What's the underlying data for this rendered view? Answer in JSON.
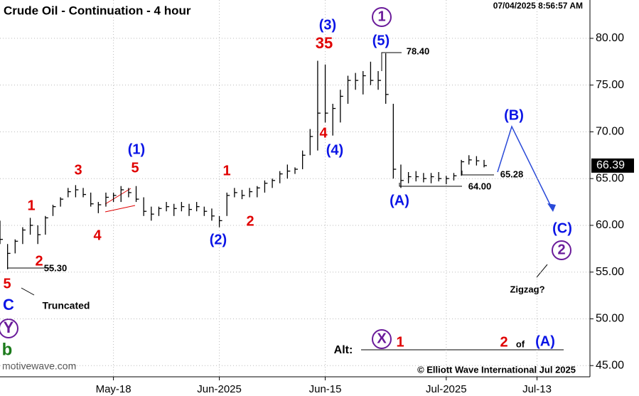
{
  "chart_data": {
    "type": "ohlc",
    "title": "Crude Oil - Continuation - 4 hour",
    "timestamp": "07/04/2025 8:56:57 AM",
    "source": "motivewave.com",
    "copyright": "© Elliott Wave International Jul 2025",
    "color": "#000000",
    "grid": true,
    "x": [
      0,
      1,
      2,
      3,
      4,
      5,
      6,
      7,
      8,
      9,
      10,
      11,
      12,
      13,
      14,
      15,
      16,
      17,
      18,
      19,
      20,
      21,
      22,
      23,
      24,
      25,
      26,
      27,
      28,
      29,
      30,
      31,
      32,
      33,
      34,
      35,
      36,
      37,
      38,
      39,
      40,
      41,
      42,
      43,
      44,
      45,
      46,
      47,
      48,
      49,
      50,
      51,
      52,
      53,
      54,
      55,
      56,
      57,
      58,
      59,
      60,
      61,
      62,
      63,
      64
    ],
    "high": [
      60.5,
      58,
      58.5,
      59.8,
      60.8,
      60,
      61,
      62.2,
      63,
      64,
      64.3,
      64,
      63.5,
      62.5,
      63.5,
      63.5,
      64.2,
      64,
      64.2,
      63,
      62,
      62,
      62.5,
      62.3,
      62.5,
      62.3,
      62.5,
      62,
      61.8,
      61,
      63.5,
      64,
      63.8,
      64,
      64.2,
      64.8,
      65,
      65.8,
      66.5,
      66.2,
      68,
      70.3,
      77.6,
      77.2,
      73,
      74.5,
      76,
      76.3,
      76.5,
      77.5,
      76.5,
      78.4,
      73,
      66.5,
      65.7,
      65.8,
      65.6,
      65.6,
      65.7,
      65.3,
      65.6,
      67,
      67.5,
      67.4,
      67
    ],
    "low": [
      58,
      55.3,
      57,
      58,
      59,
      58,
      59,
      61,
      62,
      63,
      63,
      63,
      62,
      61.3,
      62,
      62.5,
      62.5,
      63,
      62.5,
      61,
      60.5,
      61,
      61.5,
      61,
      61.5,
      61,
      61.5,
      61,
      60.5,
      59.8,
      61,
      63,
      62.8,
      63,
      63,
      63.5,
      64,
      64.5,
      65,
      65.5,
      66,
      67.5,
      68,
      71,
      69.6,
      71,
      73,
      74.5,
      74,
      75,
      74.5,
      73,
      65,
      64,
      64.5,
      64.7,
      64.6,
      64.5,
      64.7,
      64.4,
      64.8,
      65.3,
      66.5,
      66.4,
      66.2
    ],
    "close": [
      58.5,
      57,
      58.3,
      59.5,
      60,
      59,
      60.8,
      62,
      62.8,
      63.6,
      63.8,
      63.3,
      62.3,
      62.2,
      63,
      63.2,
      63.8,
      63.5,
      62.8,
      61.5,
      61.2,
      61.8,
      62,
      61.8,
      62,
      61.7,
      62,
      61.5,
      61,
      60.5,
      63.2,
      63.5,
      63.2,
      63.6,
      64,
      64.5,
      64.8,
      65.5,
      65.8,
      66,
      67.5,
      69.5,
      72,
      72,
      72.5,
      73.8,
      75.5,
      75.5,
      76,
      75.5,
      75.5,
      74,
      66,
      64.8,
      65.2,
      65.2,
      65,
      65.2,
      65,
      65,
      65.3,
      66.8,
      67,
      66.9,
      66.39
    ],
    "last_label": "66.39",
    "xlim": [
      0,
      78
    ],
    "xticks": [
      {
        "value": 15,
        "label": "May-18"
      },
      {
        "value": 29,
        "label": "Jun-2025"
      },
      {
        "value": 43,
        "label": "Jun-15"
      },
      {
        "value": 59,
        "label": "Jul-2025"
      },
      {
        "value": 71,
        "label": "Jul-13"
      }
    ],
    "ylim": [
      43.8,
      84.1
    ],
    "yticks": [
      {
        "value": 45,
        "label": "45.00"
      },
      {
        "value": 50,
        "label": "50.00"
      },
      {
        "value": 55,
        "label": "55.00"
      },
      {
        "value": 60,
        "label": "60.00"
      },
      {
        "value": 65,
        "label": "65.00"
      },
      {
        "value": 70,
        "label": "70.00"
      },
      {
        "value": 75,
        "label": "75.00"
      },
      {
        "value": 80,
        "label": "80.00"
      }
    ],
    "annotations": [
      {
        "text": "5",
        "color": "#e00000"
      },
      {
        "text": "C",
        "color": "#0a14e6"
      },
      {
        "text": "Y",
        "color": "#6a1b9a"
      },
      {
        "text": "b",
        "color": "#1b7a1b"
      },
      {
        "text": "1",
        "color": "#e00000"
      },
      {
        "text": "2",
        "color": "#e00000"
      },
      {
        "text": "3",
        "color": "#e00000"
      },
      {
        "text": "4",
        "color": "#e00000"
      },
      {
        "text": "5",
        "color": "#e00000"
      },
      {
        "text": "(1)",
        "color": "#0a14e6"
      },
      {
        "text": "1",
        "color": "#e00000"
      },
      {
        "text": "2",
        "color": "#e00000"
      },
      {
        "text": "(2)",
        "color": "#0a14e6"
      },
      {
        "text": "35",
        "color": "#e00000"
      },
      {
        "text": "(3)",
        "color": "#0a14e6"
      },
      {
        "text": "1",
        "color": "#6a1b9a"
      },
      {
        "text": "(5)",
        "color": "#0a14e6"
      },
      {
        "text": "4",
        "color": "#e00000"
      },
      {
        "text": "(4)",
        "color": "#0a14e6"
      },
      {
        "text": "(A)",
        "color": "#0a14e6"
      },
      {
        "text": "(B)",
        "color": "#0a14e6"
      },
      {
        "text": "(C)",
        "color": "#0a14e6"
      },
      {
        "text": "2",
        "color": "#6a1b9a"
      },
      {
        "text": "Zigzag?",
        "color": "#000000"
      },
      {
        "text": "Truncated",
        "color": "#000000"
      },
      {
        "text": "Alt:",
        "color": "#000000"
      },
      {
        "text": "X",
        "color": "#6a1b9a"
      },
      {
        "text": "1",
        "color": "#e00000"
      },
      {
        "text": "2",
        "color": "#e00000"
      },
      {
        "text": "of",
        "color": "#000000"
      },
      {
        "text": "(A)",
        "color": "#0a14e6"
      },
      {
        "text": "55.30",
        "color": "#000000"
      },
      {
        "text": "78.40",
        "color": "#000000"
      },
      {
        "text": "64.00",
        "color": "#000000"
      },
      {
        "text": "65.28",
        "color": "#000000"
      }
    ]
  }
}
